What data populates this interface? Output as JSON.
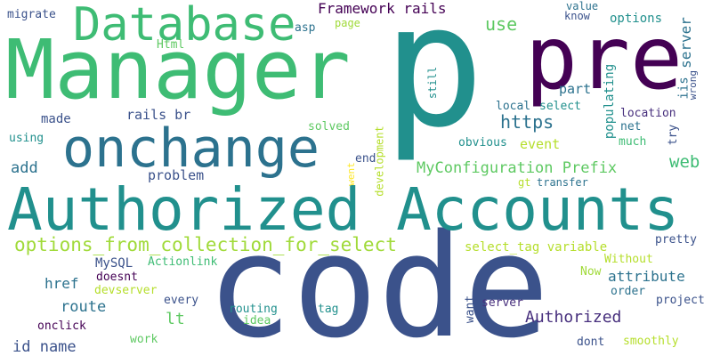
{
  "palette": {
    "background": "#ffffff",
    "dark_navy": "#3b528b",
    "teal": "#21908d",
    "teal_dark": "#2c728e",
    "green": "#5ec962",
    "lime": "#b5de2b",
    "yellow_green": "#a0da39",
    "purple": "#440154",
    "indigo": "#472f7d"
  },
  "words": {
    "p": "p",
    "code": "code",
    "manager": "Manager",
    "authorized_accounts": "Authorized Accounts",
    "database": "Database",
    "pre": "pre",
    "onchange": "onchange",
    "options_from_collection": "options_from_collection_for_select",
    "framework_rails": "Framework rails",
    "myconfiguration_prefix": "MyConfiguration Prefix",
    "https": "https",
    "web": "web",
    "authorized": "Authorized",
    "select_tag_variable": "select_tag variable",
    "attribute": "attribute",
    "route": "route",
    "problem": "problem",
    "add": "add",
    "made": "made",
    "rails_br": "rails br",
    "href": "href",
    "lt": "lt",
    "use": "use",
    "options": "options",
    "part": "part",
    "iis": "iis",
    "server": "server",
    "populating": "populating",
    "event": "event",
    "id_name": "id name",
    "migrate": "migrate",
    "html": "Html",
    "asp": "asp",
    "page": "page",
    "value": "value",
    "know": "know",
    "still": "still",
    "local": "local",
    "select": "select",
    "location": "location",
    "net": "net",
    "much": "much",
    "try": "try",
    "wrong": "wrong",
    "obvious": "obvious",
    "solved": "solved",
    "development": "development",
    "end": "end",
    "went": "went",
    "server2": "server",
    "gt": "gt",
    "transfer": "transfer",
    "using": "using",
    "mysql": "MySQL",
    "actionlink": "Actionlink",
    "doesnt": "doesnt",
    "devserver": "devserver",
    "onclick": "onclick",
    "every": "every",
    "routing": "routing",
    "idea": "idea",
    "tag": "tag",
    "work": "work",
    "want": "want",
    "dont": "dont",
    "smoothly": "smoothly",
    "pretty": "pretty",
    "without": "Without",
    "now": "Now",
    "order": "order",
    "project": "project"
  }
}
